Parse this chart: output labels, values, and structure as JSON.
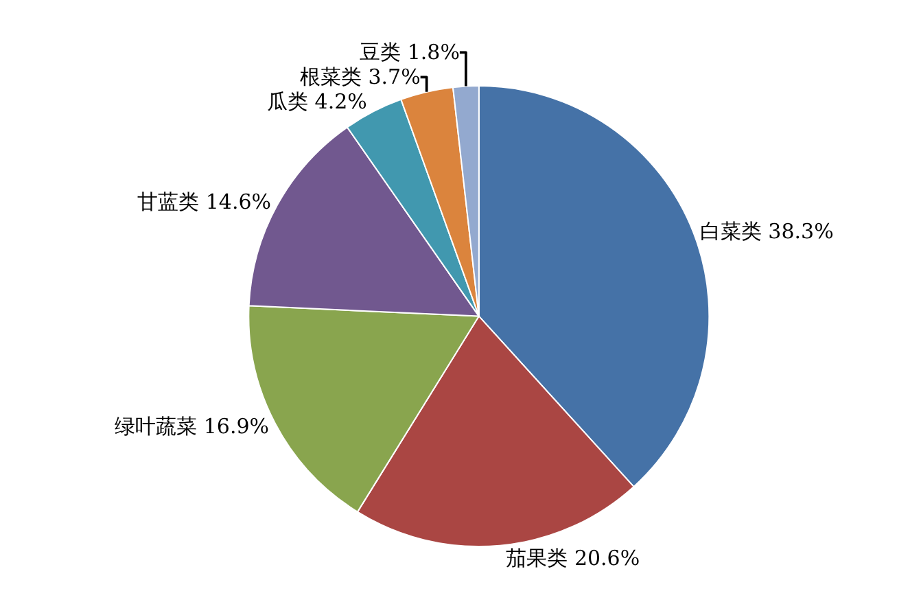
{
  "chart_data": {
    "type": "pie",
    "categories": [
      "白菜类",
      "茄果类",
      "绿叶蔬菜",
      "甘蓝类",
      "瓜类",
      "根菜类",
      "豆类"
    ],
    "values": [
      38.3,
      20.6,
      16.9,
      14.6,
      4.2,
      3.7,
      1.8
    ],
    "value_labels": [
      "38.3%",
      "20.6%",
      "16.9%",
      "14.6%",
      "4.2%",
      "3.7%",
      "1.8%"
    ],
    "colors": [
      "#4572a7",
      "#aa4643",
      "#89a54e",
      "#71588f",
      "#4198af",
      "#db843d",
      "#93a9cf"
    ],
    "legend": false
  }
}
